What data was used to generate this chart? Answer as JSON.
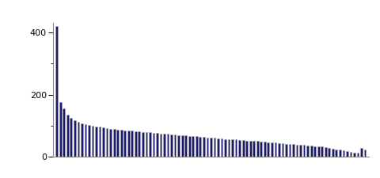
{
  "n_bars": 87,
  "bar_color": "#1a1a6e",
  "bar_edge_color": "#b0b0b0",
  "background_color": "#ffffff",
  "ylim": [
    0,
    430
  ],
  "yticks": [
    0,
    200,
    400
  ],
  "values": [
    420,
    175,
    155,
    135,
    125,
    118,
    112,
    108,
    105,
    102,
    100,
    98,
    96,
    94,
    92,
    90,
    88,
    87,
    86,
    85,
    84,
    83,
    82,
    81,
    80,
    79,
    78,
    77,
    76,
    75,
    74,
    73,
    72,
    71,
    70,
    69,
    68,
    67,
    66,
    65,
    64,
    63,
    62,
    61,
    60,
    59,
    58,
    57,
    57,
    56,
    55,
    54,
    53,
    52,
    52,
    51,
    50,
    49,
    48,
    47,
    46,
    45,
    44,
    43,
    42,
    41,
    40,
    39,
    38,
    37,
    36,
    35,
    34,
    33,
    32,
    30,
    28,
    26,
    24,
    22,
    20,
    18,
    16,
    14,
    12,
    28,
    22
  ]
}
